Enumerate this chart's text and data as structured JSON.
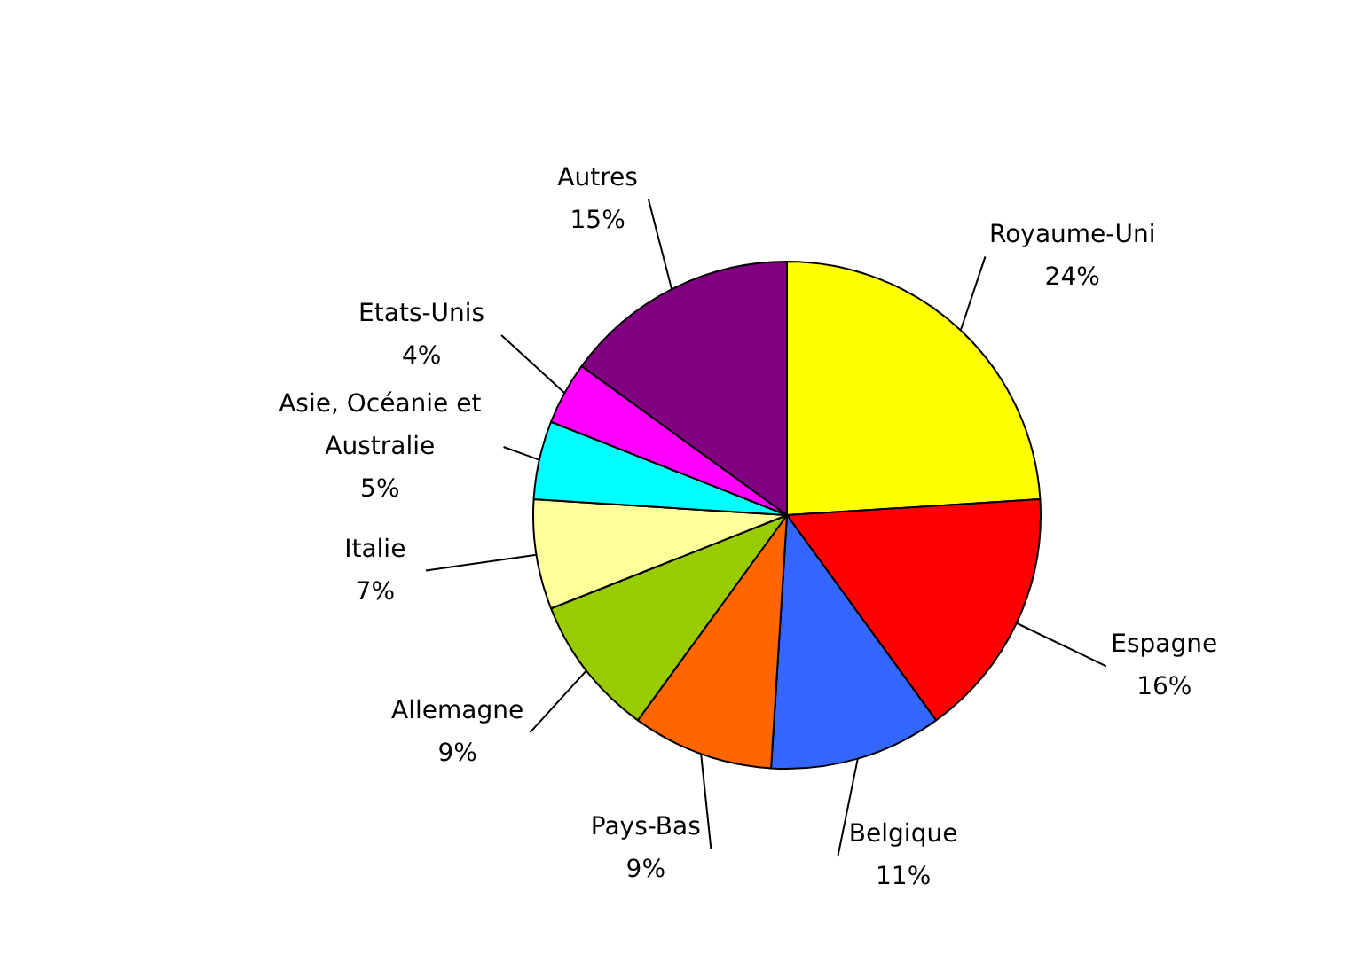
{
  "chart_data": {
    "type": "pie",
    "categories": [
      "Royaume-Uni",
      "Espagne",
      "Belgique",
      "Pays-Bas",
      "Allemagne",
      "Italie",
      "Asie, Océanie et Australie",
      "Etats-Unis",
      "Autres"
    ],
    "values": [
      24,
      16,
      11,
      9,
      9,
      7,
      5,
      4,
      15
    ],
    "value_labels": [
      "24%",
      "16%",
      "11%",
      "9%",
      "9%",
      "7%",
      "5%",
      "4%",
      "15%"
    ],
    "colors": [
      "#ffff00",
      "#ff0000",
      "#3366ff",
      "#ff6600",
      "#99cc00",
      "#ffff99",
      "#00ffff",
      "#ff00ff",
      "#800080"
    ]
  }
}
